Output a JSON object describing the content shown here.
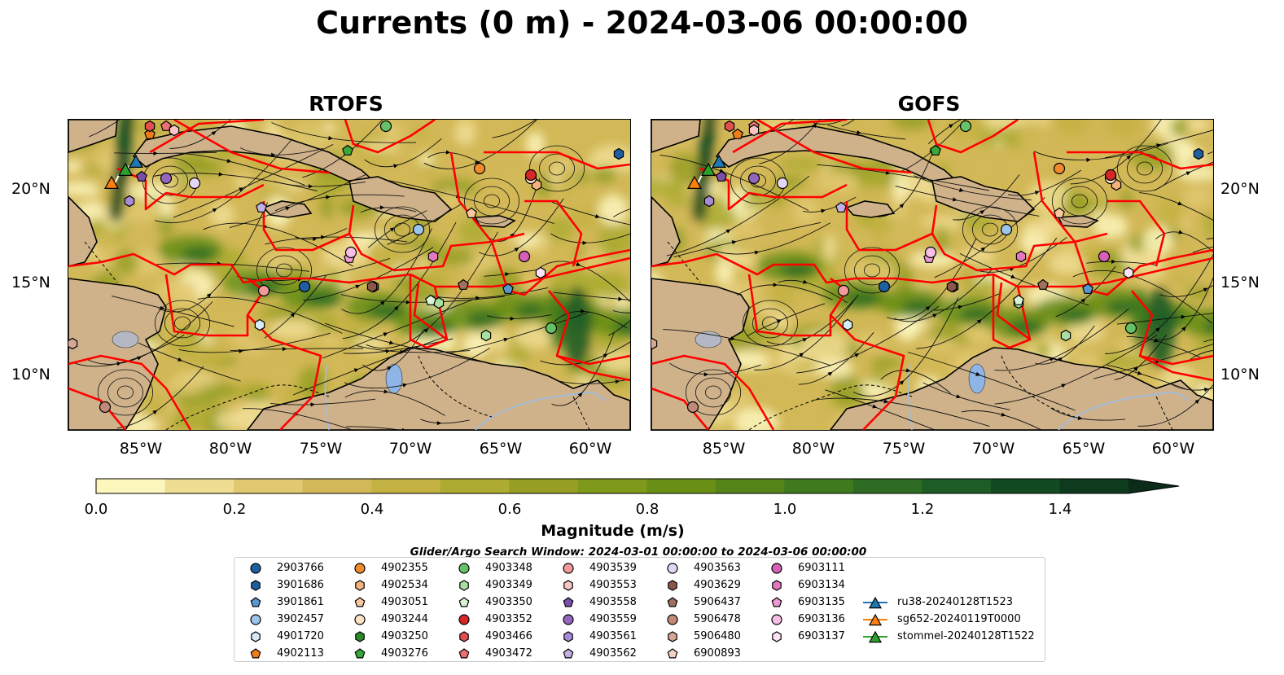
{
  "title": "Currents (0 m) - 2024-03-06 00:00:00",
  "panels": [
    {
      "title": "RTOFS"
    },
    {
      "title": "GOFS"
    }
  ],
  "lat_labels": [
    "20°N",
    "15°N",
    "10°N"
  ],
  "lon_labels": [
    "85°W",
    "80°W",
    "75°W",
    "70°W",
    "65°W",
    "60°W"
  ],
  "colorbar": {
    "title": "Magnitude (m/s)",
    "ticks": [
      "0.0",
      "0.2",
      "0.4",
      "0.6",
      "0.8",
      "1.0",
      "1.2",
      "1.4"
    ],
    "range": [
      0,
      1.5
    ],
    "colors": [
      "#fdf6bd",
      "#f0dd94",
      "#e2c870",
      "#d2b857",
      "#c4b243",
      "#adab32",
      "#969f24",
      "#7f991a",
      "#6a8f17",
      "#558418",
      "#3f7a1f",
      "#2e6c24",
      "#1e5c26",
      "#124b22",
      "#0e3a1d",
      "#0c2b18"
    ]
  },
  "search_window": "Glider/Argo Search Window: 2024-03-01 00:00:00 to 2024-03-06 00:00:00",
  "legend": [
    {
      "label": "2903766",
      "color": "#1f5f9f",
      "shape": "circle"
    },
    {
      "label": "3901686",
      "color": "#1f5f9f",
      "shape": "hexagon"
    },
    {
      "label": "3901861",
      "color": "#5b97cf",
      "shape": "pentagon"
    },
    {
      "label": "3902457",
      "color": "#9cc5ea",
      "shape": "circle"
    },
    {
      "label": "4901720",
      "color": "#d6eaf8",
      "shape": "hexagon"
    },
    {
      "label": "4902113",
      "color": "#ef7d1a",
      "shape": "pentagon"
    },
    {
      "label": "4902355",
      "color": "#f08a2c",
      "shape": "circle"
    },
    {
      "label": "4902534",
      "color": "#f5b27a",
      "shape": "hexagon"
    },
    {
      "label": "4903051",
      "color": "#f8c9a0",
      "shape": "pentagon"
    },
    {
      "label": "4903244",
      "color": "#fde3c6",
      "shape": "circle"
    },
    {
      "label": "4903250",
      "color": "#2a8a2a",
      "shape": "hexagon"
    },
    {
      "label": "4903276",
      "color": "#3aa83a",
      "shape": "pentagon"
    },
    {
      "label": "4903348",
      "color": "#66c266",
      "shape": "circle"
    },
    {
      "label": "4903349",
      "color": "#a7e0a0",
      "shape": "hexagon"
    },
    {
      "label": "4903350",
      "color": "#d9f3d2",
      "shape": "pentagon"
    },
    {
      "label": "4903352",
      "color": "#d62728",
      "shape": "circle"
    },
    {
      "label": "4903466",
      "color": "#e05050",
      "shape": "hexagon"
    },
    {
      "label": "4903472",
      "color": "#ec7070",
      "shape": "pentagon"
    },
    {
      "label": "4903539",
      "color": "#f29a9a",
      "shape": "circle"
    },
    {
      "label": "4903553",
      "color": "#f8c4c4",
      "shape": "hexagon"
    },
    {
      "label": "4903558",
      "color": "#7a4fa8",
      "shape": "pentagon"
    },
    {
      "label": "4903559",
      "color": "#9467bd",
      "shape": "circle"
    },
    {
      "label": "4903561",
      "color": "#a88bd6",
      "shape": "hexagon"
    },
    {
      "label": "4903562",
      "color": "#c3aee6",
      "shape": "pentagon"
    },
    {
      "label": "4903563",
      "color": "#e3d6f5",
      "shape": "circle"
    },
    {
      "label": "4903629",
      "color": "#8c564b",
      "shape": "hexagon"
    },
    {
      "label": "5906437",
      "color": "#a0705f",
      "shape": "pentagon"
    },
    {
      "label": "5906478",
      "color": "#c08a78",
      "shape": "circle"
    },
    {
      "label": "5906480",
      "color": "#d4a897",
      "shape": "hexagon"
    },
    {
      "label": "6900893",
      "color": "#f3d3c6",
      "shape": "pentagon"
    },
    {
      "label": "6903111",
      "color": "#d660b8",
      "shape": "circle"
    },
    {
      "label": "6903134",
      "color": "#e377c2",
      "shape": "hexagon"
    },
    {
      "label": "6903135",
      "color": "#ee9ad6",
      "shape": "pentagon"
    },
    {
      "label": "6903136",
      "color": "#f7bfe8",
      "shape": "circle"
    },
    {
      "label": "6903137",
      "color": "#fde3f6",
      "shape": "hexagon"
    },
    {
      "label": "ru38-20240128T1523",
      "color": "#1f77b4",
      "shape": "triangle-line"
    },
    {
      "label": "sg652-20240119T0000",
      "color": "#ff7f0e",
      "shape": "triangle-line"
    },
    {
      "label": "stommel-20240128T1522",
      "color": "#2ca02c",
      "shape": "triangle-line"
    }
  ],
  "colors": {
    "land": "#cfb28a",
    "eez": "#ff0000",
    "lake": "#8fb5e6",
    "river": "#a5bcd8"
  }
}
